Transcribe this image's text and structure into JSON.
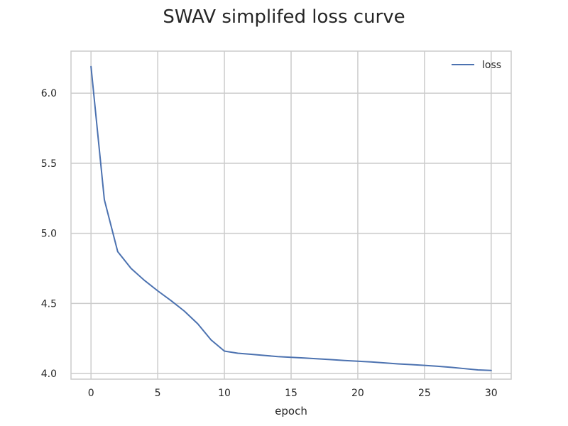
{
  "chart_data": {
    "type": "line",
    "title": "SWAV simplifed loss curve",
    "xlabel": "epoch",
    "ylabel": "",
    "xlim": [
      -1.5,
      31.5
    ],
    "ylim": [
      3.96,
      6.3
    ],
    "x_ticks": [
      0,
      5,
      10,
      15,
      20,
      25,
      30
    ],
    "y_ticks": [
      4.0,
      4.5,
      5.0,
      5.5,
      6.0
    ],
    "x_tick_labels": [
      "0",
      "5",
      "10",
      "15",
      "20",
      "25",
      "30"
    ],
    "y_tick_labels": [
      "4.0",
      "4.5",
      "5.0",
      "5.5",
      "6.0"
    ],
    "grid": true,
    "legend_position": "top-right",
    "colors": {
      "line": "#4c72b0",
      "grid": "#cccccc",
      "frame": "#cccccc"
    },
    "series": [
      {
        "name": "loss",
        "x": [
          0,
          1,
          2,
          3,
          4,
          5,
          6,
          7,
          8,
          9,
          10,
          11,
          12,
          13,
          14,
          15,
          16,
          17,
          18,
          19,
          20,
          21,
          22,
          23,
          24,
          25,
          26,
          27,
          28,
          29,
          30
        ],
        "y": [
          6.19,
          5.24,
          4.87,
          4.75,
          4.665,
          4.59,
          4.52,
          4.445,
          4.355,
          4.24,
          4.16,
          4.145,
          4.137,
          4.129,
          4.121,
          4.116,
          4.111,
          4.105,
          4.099,
          4.093,
          4.088,
          4.083,
          4.076,
          4.069,
          4.064,
          4.058,
          4.052,
          4.044,
          4.035,
          4.026,
          4.022
        ]
      }
    ]
  }
}
